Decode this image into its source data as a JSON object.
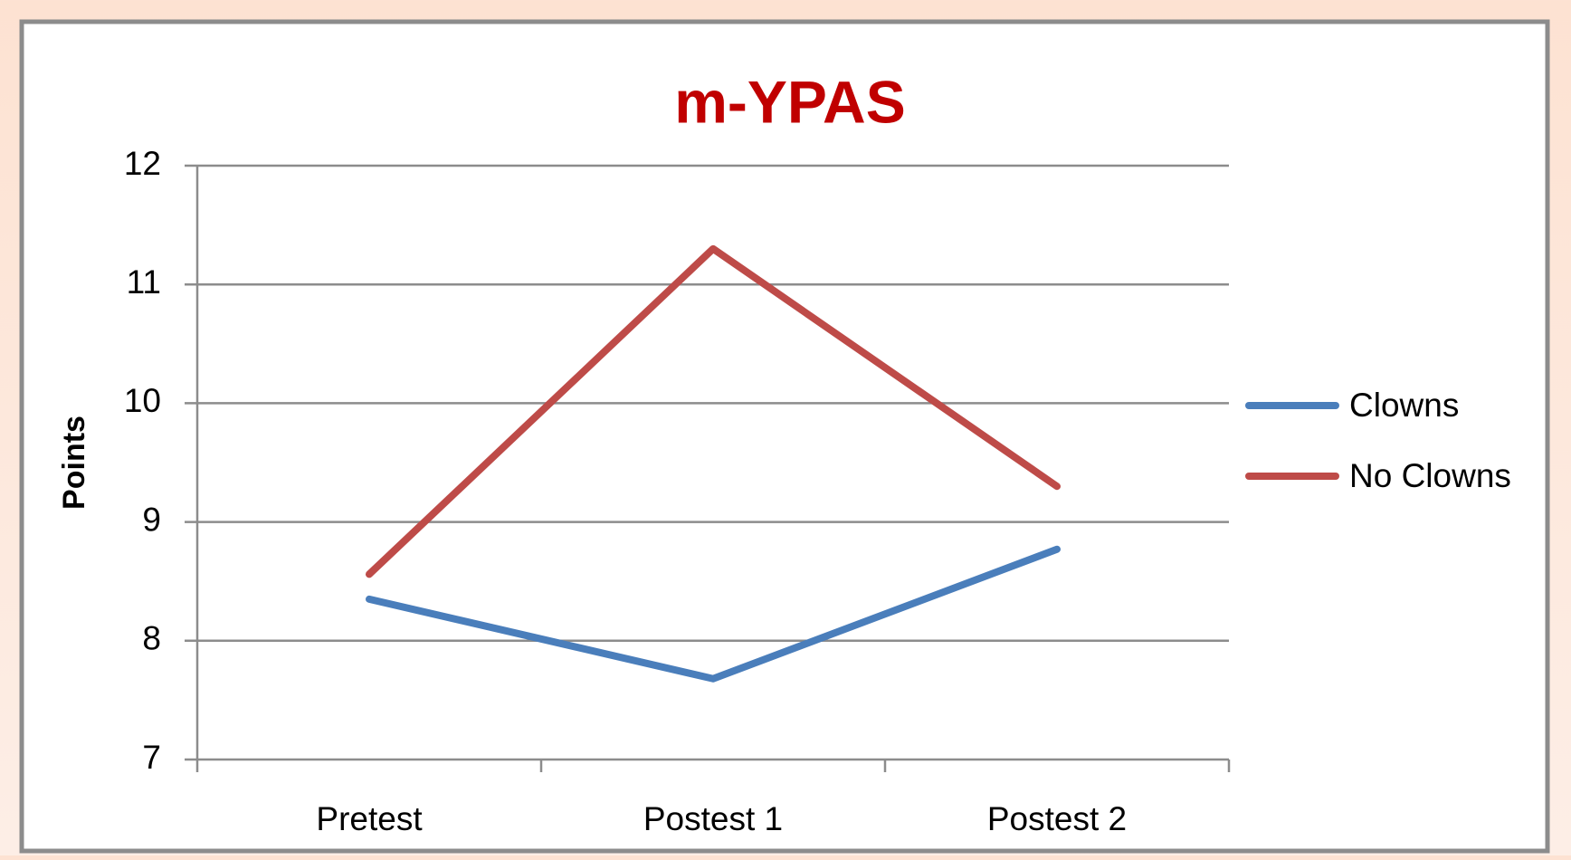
{
  "chart_data": {
    "type": "line",
    "title": "m-YPAS",
    "y_label": "Points",
    "categories": [
      "Pretest",
      "Postest 1",
      "Postest 2"
    ],
    "series": [
      {
        "name": "Clowns",
        "color": "#4a7ebb",
        "values": [
          8.35,
          7.68,
          8.77
        ]
      },
      {
        "name": "No Clowns",
        "color": "#be4b48",
        "values": [
          8.56,
          11.3,
          9.3
        ]
      }
    ],
    "ylim": [
      7,
      12
    ],
    "yticks": [
      7,
      8,
      9,
      10,
      11,
      12
    ],
    "grid": true,
    "legend": "right"
  }
}
